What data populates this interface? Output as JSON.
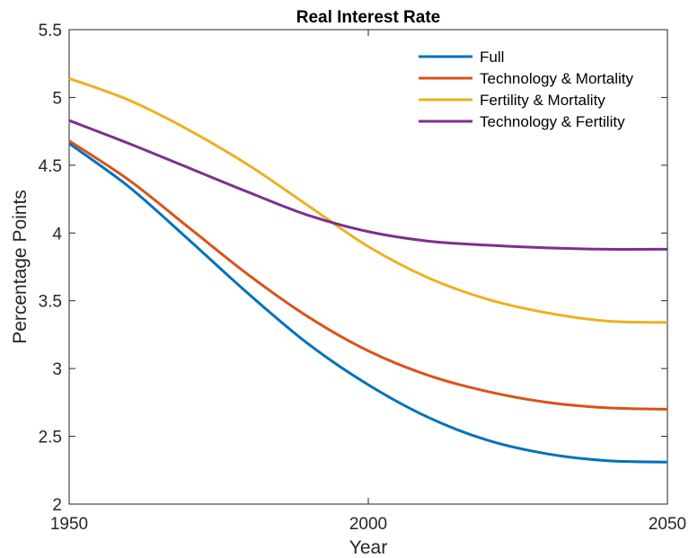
{
  "chart_data": {
    "type": "line",
    "title": "Real Interest Rate",
    "xlabel": "Year",
    "ylabel": "Percentage Points",
    "xlim": [
      1950,
      2050
    ],
    "ylim": [
      2,
      5.5
    ],
    "xticks": [
      1950,
      2000,
      2050
    ],
    "yticks": [
      2,
      2.5,
      3,
      3.5,
      4,
      4.5,
      5,
      5.5
    ],
    "xtick_labels": [
      "1950",
      "2000",
      "2050"
    ],
    "ytick_labels": [
      "2",
      "2.5",
      "3",
      "3.5",
      "4",
      "4.5",
      "5",
      "5.5"
    ],
    "grid": false,
    "legend_position": "top-right",
    "x": [
      1950,
      1960,
      1970,
      1980,
      1990,
      2000,
      2010,
      2020,
      2030,
      2040,
      2050
    ],
    "series": [
      {
        "name": "Full",
        "color": "#0072BD",
        "values": [
          4.66,
          4.34,
          3.95,
          3.55,
          3.18,
          2.88,
          2.64,
          2.47,
          2.37,
          2.32,
          2.31
        ]
      },
      {
        "name": "Technology & Mortality",
        "color": "#D95319",
        "values": [
          4.68,
          4.39,
          4.04,
          3.69,
          3.38,
          3.13,
          2.95,
          2.83,
          2.75,
          2.71,
          2.7
        ]
      },
      {
        "name": "Fertility & Mortality",
        "color": "#EDB120",
        "values": [
          5.14,
          4.98,
          4.76,
          4.5,
          4.2,
          3.9,
          3.67,
          3.51,
          3.41,
          3.35,
          3.34
        ]
      },
      {
        "name": "Technology & Fertility",
        "color": "#7E2F8E",
        "values": [
          4.83,
          4.66,
          4.48,
          4.3,
          4.13,
          4.01,
          3.94,
          3.91,
          3.89,
          3.88,
          3.88
        ]
      }
    ]
  }
}
